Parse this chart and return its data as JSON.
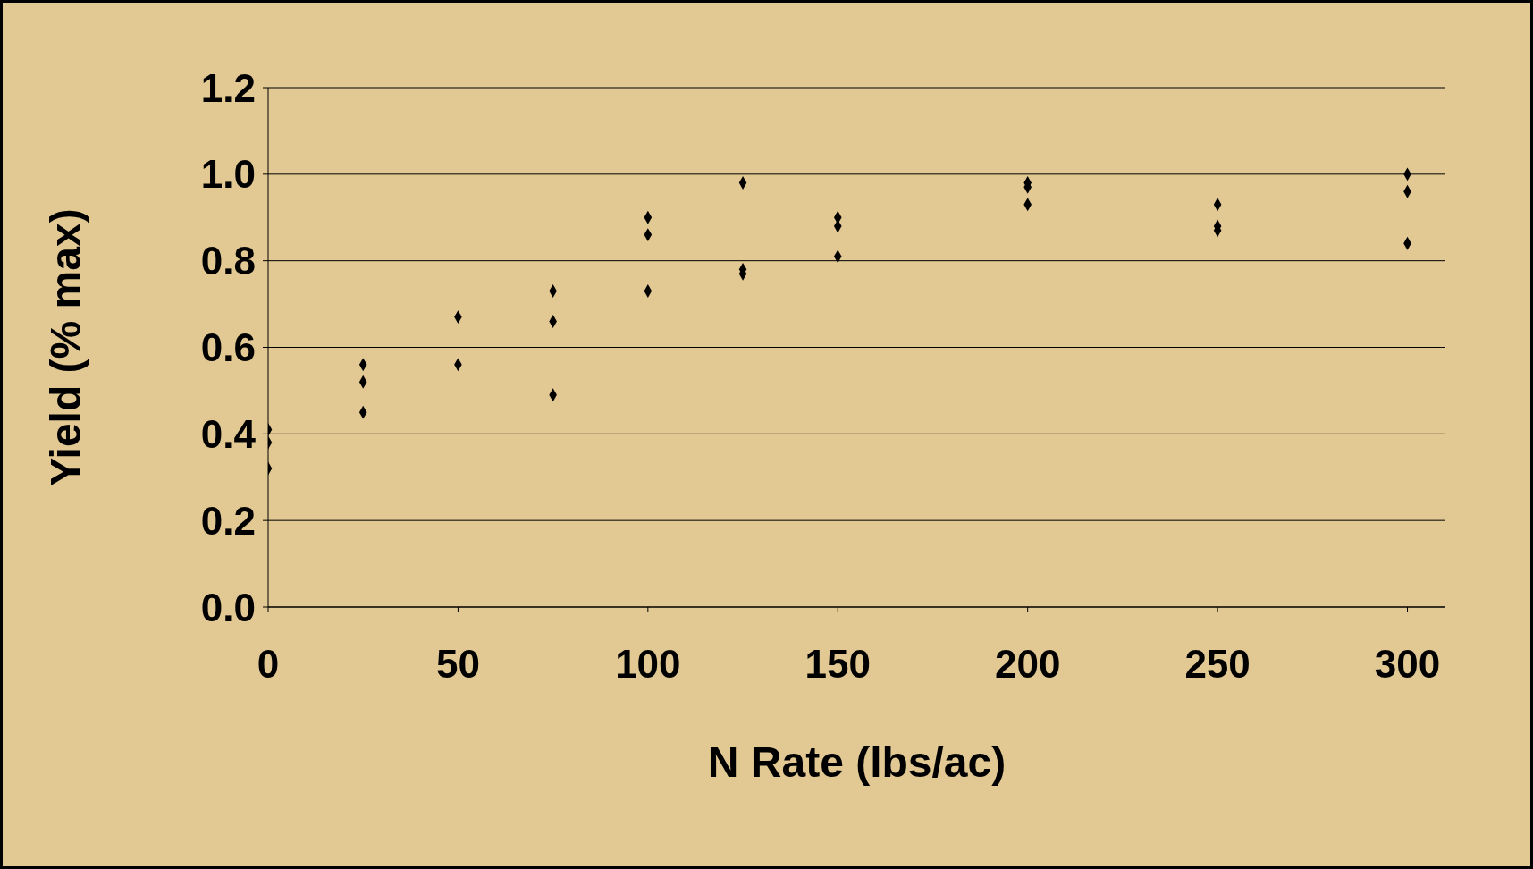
{
  "chart_data": {
    "type": "scatter",
    "xlabel": "N Rate (lbs/ac)",
    "ylabel": "Yield (% max)",
    "x": [
      0,
      0,
      0,
      25,
      25,
      25,
      50,
      50,
      75,
      75,
      75,
      100,
      100,
      100,
      125,
      125,
      125,
      150,
      150,
      150,
      200,
      200,
      200,
      250,
      250,
      250,
      300,
      300,
      300
    ],
    "series": [
      {
        "color": "#000000",
        "values": [
          0.41,
          0.38,
          0.32,
          0.56,
          0.52,
          0.45,
          0.67,
          0.56,
          0.73,
          0.66,
          0.49,
          0.9,
          0.86,
          0.73,
          0.98,
          0.78,
          0.77,
          0.9,
          0.88,
          0.81,
          0.98,
          0.97,
          0.93,
          0.93,
          0.88,
          0.87,
          1.0,
          0.96,
          0.84
        ]
      }
    ],
    "xlim": [
      0,
      310
    ],
    "xticks": [
      0,
      50,
      100,
      150,
      200,
      250,
      300
    ],
    "ylim": [
      0,
      1.2
    ],
    "yticks": [
      {
        "value": 0,
        "label": "0.0"
      },
      {
        "value": 0.2,
        "label": "0.2"
      },
      {
        "value": 0.4,
        "label": "0.4"
      },
      {
        "value": 0.6,
        "label": "0.6"
      },
      {
        "value": 0.8,
        "label": "0.8"
      },
      {
        "value": 1.0,
        "label": "1.0"
      },
      {
        "value": 1.2,
        "label": "1.2"
      }
    ],
    "grid": "y",
    "marker": "diamond",
    "legend": false
  }
}
